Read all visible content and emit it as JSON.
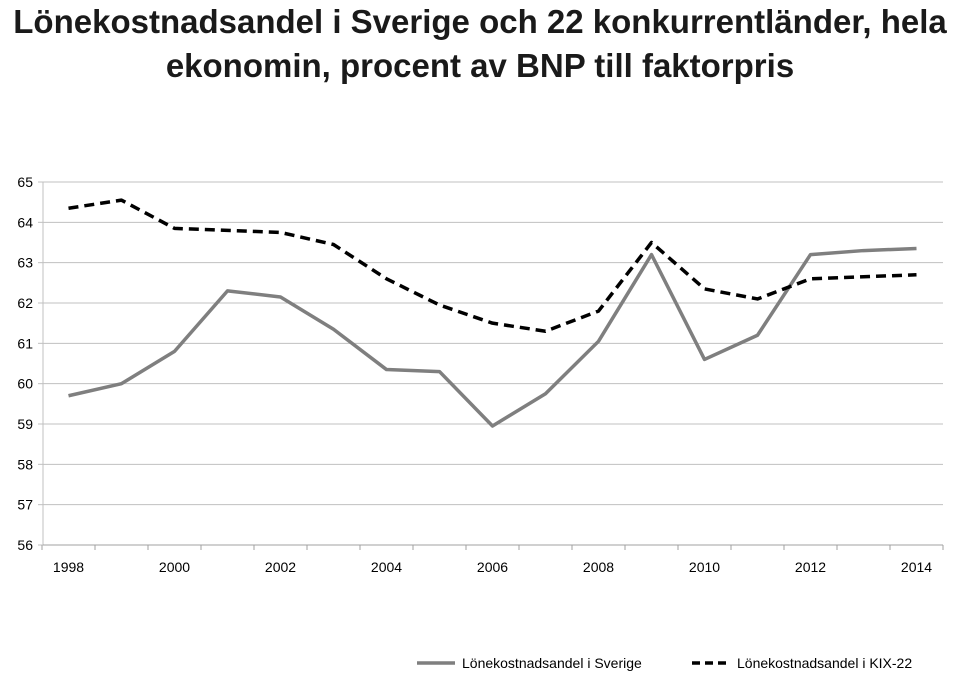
{
  "chart_data": {
    "type": "line",
    "title_lines": [
      "Lönekostnadsandel i Sverige och 22 konkurrentländer, hela",
      "ekonomin, procent av BNP till faktorpris"
    ],
    "xlabel": "",
    "ylabel": "",
    "x": [
      1998,
      1999,
      2000,
      2001,
      2002,
      2003,
      2004,
      2005,
      2006,
      2007,
      2008,
      2009,
      2010,
      2011,
      2012,
      2013,
      2014
    ],
    "x_tick_labels": [
      "1998",
      "2000",
      "2002",
      "2004",
      "2006",
      "2008",
      "2010",
      "2012",
      "2014"
    ],
    "y_tick_labels": [
      "56",
      "57",
      "58",
      "59",
      "60",
      "61",
      "62",
      "63",
      "64",
      "65"
    ],
    "ylim": [
      56,
      65
    ],
    "xlim": [
      1998,
      2014
    ],
    "grid": "horizontal",
    "legend_position": "bottom",
    "series": [
      {
        "name": "Lönekostnadsandel i Sverige",
        "style": "solid",
        "color": "#7f7f7f",
        "values": [
          59.7,
          60.0,
          60.8,
          62.3,
          62.15,
          61.35,
          60.35,
          60.3,
          58.95,
          59.75,
          61.05,
          63.2,
          60.6,
          61.2,
          63.2,
          63.3,
          63.35
        ]
      },
      {
        "name": "Lönekostnadsandel i KIX-22",
        "style": "dashed",
        "color": "#000000",
        "values": [
          64.35,
          64.55,
          63.85,
          63.8,
          63.75,
          63.45,
          62.6,
          61.95,
          61.5,
          61.3,
          61.8,
          63.5,
          62.35,
          62.1,
          62.6,
          62.65,
          62.7
        ]
      }
    ]
  }
}
